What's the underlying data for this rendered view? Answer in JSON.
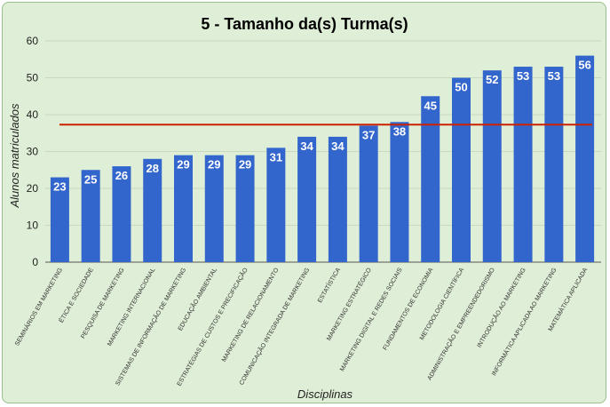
{
  "chart_data": {
    "type": "bar",
    "title": "5 - Tamanho da(s) Turma(s)",
    "xlabel": "Disciplinas",
    "ylabel": "Alunos matriculados",
    "ylim": [
      0,
      60
    ],
    "yticks": [
      0,
      10,
      20,
      30,
      40,
      50,
      60
    ],
    "grid": true,
    "bar_color": "#3366cc",
    "reference_line": {
      "value": 37.3,
      "color": "#cc2200"
    },
    "categories": [
      "SEMINÁRIOS EM MARKETING",
      "ÉTICA E SOCIEDADE",
      "PESQUISA DE MARKETING",
      "MARKETING INTERNACIONAL",
      "SISTEMAS DE INFORMAÇÃO DE MARKETING",
      "EDUCAÇÃO AMBIENTAL",
      "ESTRATÉGIAS DE CUSTOS E PRECIFICAÇÃO",
      "MARKETING DE RELACIONAMENTO",
      "COMUNICAÇÃO INTEGRADA DE MARKETING",
      "ESTATÍSTICA",
      "MARKETING ESTRATÉGICO",
      "MARKETING DIGITAL E REDES SOCIAIS",
      "FUNDAMENTOS DE ECONOMIA",
      "METODOLOGIA CIENTÍFICA",
      "ADMINISTRAÇÃO E EMPREENDEDORISMO",
      "INTRODUÇÃO AO MARKETING",
      "INFORMÁTICA APLICADA AO MARKETING",
      "MATEMÁTICA APLICADA"
    ],
    "values": [
      23,
      25,
      26,
      28,
      29,
      29,
      29,
      31,
      34,
      34,
      37,
      38,
      45,
      50,
      52,
      53,
      53,
      56
    ]
  }
}
